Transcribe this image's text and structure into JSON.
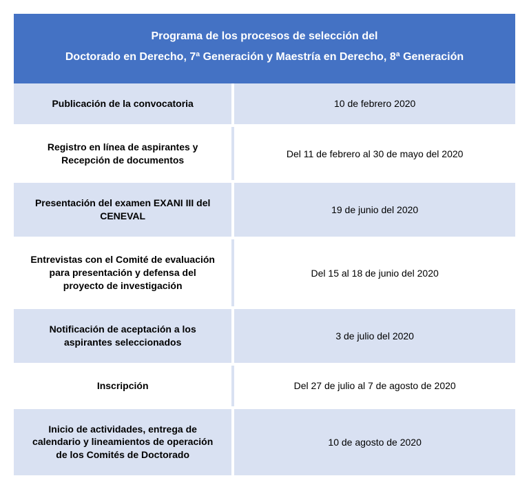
{
  "header": {
    "line1": "Programa de los procesos de selección del",
    "line2": "Doctorado en Derecho, 7ª Generación y Maestría en Derecho, 8ª Generación"
  },
  "colors": {
    "header_bg": "#4472c4",
    "header_text": "#ffffff",
    "row_alt_bg": "#d9e1f2",
    "row_plain_bg": "#ffffff",
    "text": "#000000"
  },
  "rows": [
    {
      "activity": "Publicación de la convocatoria",
      "date": "10 de febrero 2020",
      "alt": true
    },
    {
      "activity": "Registro en línea de aspirantes y Recepción de documentos",
      "date": "Del 11 de febrero al 30 de mayo del 2020",
      "alt": false
    },
    {
      "activity": "Presentación del examen EXANI III del CENEVAL",
      "date": "19 de junio del 2020",
      "alt": true
    },
    {
      "activity": "Entrevistas con el Comité de evaluación para presentación y defensa del proyecto de investigación",
      "date": "Del 15 al 18 de junio del 2020",
      "alt": false
    },
    {
      "activity": "Notificación de aceptación a los aspirantes seleccionados",
      "date": "3 de julio del 2020",
      "alt": true
    },
    {
      "activity": "Inscripción",
      "date": "Del 27 de julio al 7 de agosto de 2020",
      "alt": false
    },
    {
      "activity": "Inicio de actividades, entrega de calendario y lineamientos de operación de los Comités de Doctorado",
      "date": "10 de agosto de 2020",
      "alt": true
    }
  ]
}
